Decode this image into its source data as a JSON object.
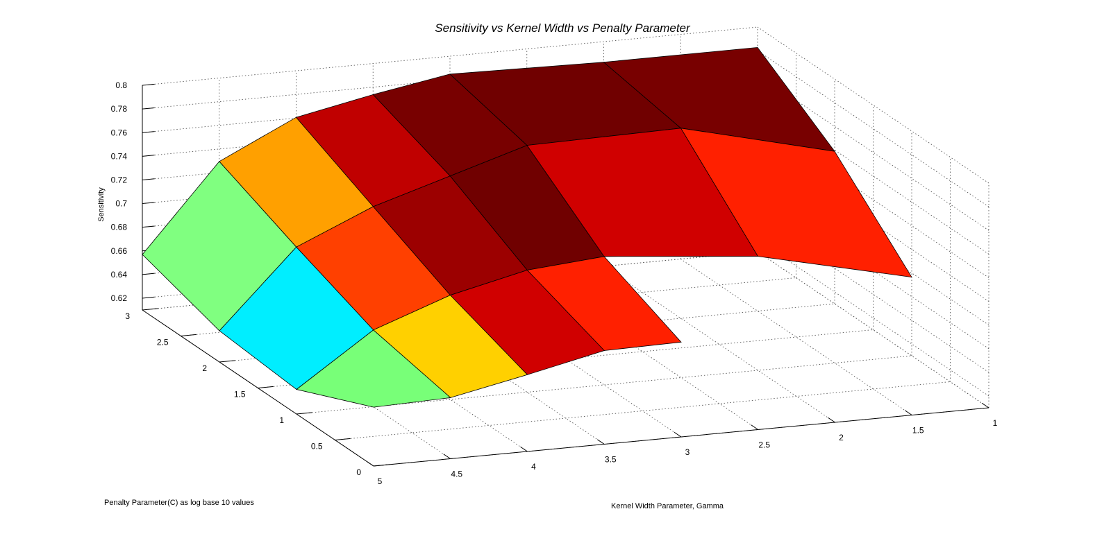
{
  "chart_data": {
    "type": "surface",
    "title": "Sensitivity vs Kernel Width vs Penalty Parameter",
    "xlabel": "Kernel Width Parameter, Gamma",
    "ylabel": "Penalty Parameter(C) as log base 10 values",
    "zlabel": "Sensitivity",
    "x_ticks": [
      "1",
      "1.5",
      "2",
      "2.5",
      "3",
      "3.5",
      "4",
      "4.5",
      "5"
    ],
    "y_ticks": [
      "0",
      "0.5",
      "1",
      "1.5",
      "2",
      "2.5",
      "3"
    ],
    "z_ticks": [
      "0.62",
      "0.64",
      "0.66",
      "0.68",
      "0.7",
      "0.72",
      "0.74",
      "0.76",
      "0.78",
      "0.8"
    ],
    "xlim": [
      1,
      5
    ],
    "ylim": [
      0,
      3
    ],
    "zlim": [
      0.61,
      0.8
    ],
    "grid": true,
    "colormap": "hot",
    "vertices": [
      {
        "gamma": 1,
        "logC": 1,
        "s": 0.6765
      },
      {
        "gamma": 1,
        "logC": 2,
        "s": 0.7389
      },
      {
        "gamma": 1,
        "logC": 3,
        "s": 0.7828
      },
      {
        "gamma": 2,
        "logC": 1,
        "s": 0.7064
      },
      {
        "gamma": 2,
        "logC": 2,
        "s": 0.7708
      },
      {
        "gamma": 2,
        "logC": 3,
        "s": 0.7826
      },
      {
        "gamma": 3,
        "logC": 0,
        "s": 0.6902
      },
      {
        "gamma": 3,
        "logC": 1,
        "s": 0.7186
      },
      {
        "gamma": 3,
        "logC": 2,
        "s": 0.7686
      },
      {
        "gamma": 3,
        "logC": 3,
        "s": 0.7849
      },
      {
        "gamma": 3.5,
        "logC": 0,
        "s": 0.6892
      },
      {
        "gamma": 3.5,
        "logC": 1,
        "s": 0.7132
      },
      {
        "gamma": 3.5,
        "logC": 2,
        "s": 0.7488
      },
      {
        "gamma": 3.5,
        "logC": 3,
        "s": 0.7737
      },
      {
        "gamma": 4,
        "logC": 0,
        "s": 0.6749
      },
      {
        "gamma": 4,
        "logC": 1,
        "s": 0.6982
      },
      {
        "gamma": 4,
        "logC": 2,
        "s": 0.7291
      },
      {
        "gamma": 4,
        "logC": 3,
        "s": 0.7606
      },
      {
        "gamma": 4.5,
        "logC": 0,
        "s": 0.6617
      },
      {
        "gamma": 4.5,
        "logC": 1,
        "s": 0.6749
      },
      {
        "gamma": 4.5,
        "logC": 2,
        "s": 0.7011
      },
      {
        "gamma": 4.5,
        "logC": 3,
        "s": 0.7295
      },
      {
        "gamma": 5,
        "logC": 0,
        "s": 0.6598
      },
      {
        "gamma": 5,
        "logC": 1,
        "s": 0.6308
      },
      {
        "gamma": 5,
        "logC": 2,
        "s": 0.6364
      },
      {
        "gamma": 5,
        "logC": 3,
        "s": 0.6569
      }
    ],
    "patches": [
      {
        "corners": [
          [
            5,
            0
          ],
          [
            4.5,
            0
          ],
          [
            4.5,
            1
          ],
          [
            5,
            1
          ]
        ],
        "color": "#78FF78"
      },
      {
        "corners": [
          [
            4.5,
            0
          ],
          [
            4,
            0
          ],
          [
            4,
            1
          ],
          [
            4.5,
            1
          ]
        ],
        "color": "#FFD000"
      },
      {
        "corners": [
          [
            4,
            0
          ],
          [
            3.5,
            0
          ],
          [
            3.5,
            1
          ],
          [
            4,
            1
          ]
        ],
        "color": "#D00000"
      },
      {
        "corners": [
          [
            3.5,
            0
          ],
          [
            3,
            0
          ],
          [
            3,
            1
          ],
          [
            3.5,
            1
          ]
        ],
        "color": "#FF2000"
      },
      {
        "corners": [
          [
            5,
            1
          ],
          [
            4.5,
            1
          ],
          [
            4.5,
            2
          ],
          [
            5,
            2
          ]
        ],
        "color": "#00EEFF"
      },
      {
        "corners": [
          [
            4.5,
            1
          ],
          [
            4,
            1
          ],
          [
            4,
            2
          ],
          [
            4.5,
            2
          ]
        ],
        "color": "#FF4000"
      },
      {
        "corners": [
          [
            4,
            1
          ],
          [
            3.5,
            1
          ],
          [
            3.5,
            2
          ],
          [
            4,
            2
          ]
        ],
        "color": "#9C0000"
      },
      {
        "corners": [
          [
            3.5,
            1
          ],
          [
            3,
            1
          ],
          [
            3,
            2
          ],
          [
            3.5,
            2
          ]
        ],
        "color": "#700000"
      },
      {
        "corners": [
          [
            5,
            2
          ],
          [
            4.5,
            2
          ],
          [
            4.5,
            3
          ],
          [
            5,
            3
          ]
        ],
        "color": "#80FF80"
      },
      {
        "corners": [
          [
            4.5,
            2
          ],
          [
            4,
            2
          ],
          [
            4,
            3
          ],
          [
            4.5,
            3
          ]
        ],
        "color": "#FFA000"
      },
      {
        "corners": [
          [
            4,
            2
          ],
          [
            3.5,
            2
          ],
          [
            3.5,
            3
          ],
          [
            4,
            3
          ]
        ],
        "color": "#C00000"
      },
      {
        "corners": [
          [
            3.5,
            2
          ],
          [
            3,
            2
          ],
          [
            3,
            3
          ],
          [
            3.5,
            3
          ]
        ],
        "color": "#780000"
      },
      {
        "corners": [
          [
            3,
            0
          ],
          [
            2,
            1
          ],
          [
            1,
            1
          ],
          [
            1,
            2
          ],
          [
            2,
            2
          ],
          [
            3,
            1
          ]
        ],
        "color": "#FF2000",
        "mesh": [
          [
            [
              3,
              1
            ],
            [
              2,
              1
            ],
            [
              2,
              2
            ]
          ],
          [
            [
              3,
              1
            ],
            [
              2,
              2
            ],
            [
              3,
              2
            ]
          ]
        ],
        "segments": [
          [
            [
              3,
              1
            ],
            [
              2,
              1
            ]
          ],
          [
            [
              2,
              1
            ],
            [
              1,
              1
            ]
          ]
        ]
      },
      {
        "corners": [
          [
            3,
            1
          ],
          [
            2,
            1
          ],
          [
            2,
            2
          ],
          [
            3,
            2
          ]
        ],
        "color": "#D00000"
      },
      {
        "corners": [
          [
            3,
            2
          ],
          [
            2,
            2
          ],
          [
            2,
            3
          ],
          [
            3,
            3
          ]
        ],
        "color": "#700000"
      },
      {
        "corners": [
          [
            2,
            1
          ],
          [
            1,
            1
          ],
          [
            1,
            2
          ],
          [
            2,
            2
          ]
        ],
        "color": "#FF2000"
      },
      {
        "corners": [
          [
            2,
            2
          ],
          [
            1,
            2
          ],
          [
            1,
            3
          ],
          [
            2,
            3
          ]
        ],
        "color": "#780000"
      }
    ]
  }
}
